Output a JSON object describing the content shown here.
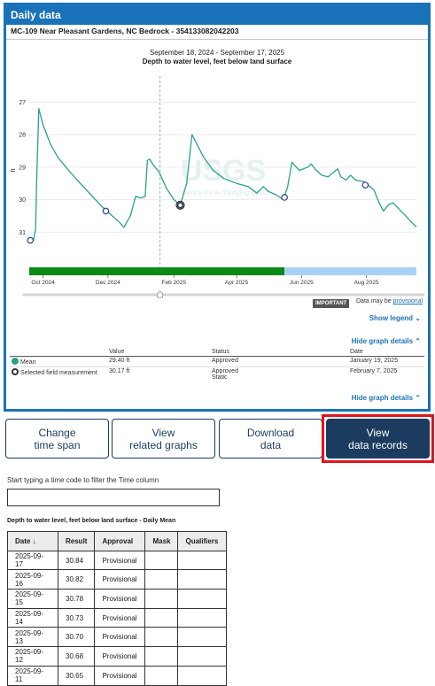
{
  "panel": {
    "title": "Daily data",
    "site_title": "MC-109 Near Pleasant Gardens, NC Bedrock - 354133082042203"
  },
  "graph": {
    "date_range": "September 18, 2024 - September 17, 2025",
    "title": "Depth to water level, feet below land surface",
    "watermark": "USGS",
    "watermark_tagline": "science for a changing world",
    "important_badge": "IMPORTANT",
    "provisional_note": "Data may be",
    "provisional_link": "provisional",
    "show_legend": "Show legend",
    "hide_details": "Hide graph details"
  },
  "chart_data": {
    "type": "line",
    "title": "Depth to water level, feet below land surface",
    "ylabel": "ft",
    "y_inverted": true,
    "ylim": [
      32,
      26.2
    ],
    "yticks": [
      27,
      28,
      29,
      30,
      31
    ],
    "xlim": [
      "2024-09-18",
      "2025-09-17"
    ],
    "xticks": [
      "Oct 2024",
      "Dec 2024",
      "Feb 2025",
      "Apr 2025",
      "Jun 2025",
      "Aug 2025"
    ],
    "xtick_dates": [
      "2024-10-01",
      "2024-12-01",
      "2025-02-01",
      "2025-04-01",
      "2025-06-01",
      "2025-08-01"
    ],
    "cursor_date": "2025-01-19",
    "series": [
      {
        "type": "line",
        "color": "#2aa08a",
        "points": [
          [
            "2024-09-18",
            31.2
          ],
          [
            "2024-09-22",
            31.25
          ],
          [
            "2024-09-24",
            30.9
          ],
          [
            "2024-09-25",
            29.4
          ],
          [
            "2024-09-27",
            27.2
          ],
          [
            "2024-10-01",
            27.7
          ],
          [
            "2024-10-08",
            28.3
          ],
          [
            "2024-10-15",
            28.7
          ],
          [
            "2024-10-25",
            29.1
          ],
          [
            "2024-11-05",
            29.5
          ],
          [
            "2024-11-15",
            29.85
          ],
          [
            "2024-11-25",
            30.2
          ],
          [
            "2024-12-05",
            30.5
          ],
          [
            "2024-12-12",
            30.7
          ],
          [
            "2024-12-16",
            30.85
          ],
          [
            "2024-12-22",
            30.5
          ],
          [
            "2024-12-27",
            29.9
          ],
          [
            "2025-01-01",
            29.95
          ],
          [
            "2025-01-05",
            29.9
          ],
          [
            "2025-01-07",
            28.8
          ],
          [
            "2025-01-09",
            28.75
          ],
          [
            "2025-01-13",
            28.95
          ],
          [
            "2025-01-18",
            29.15
          ],
          [
            "2025-01-25",
            29.65
          ],
          [
            "2025-02-01",
            30.0
          ],
          [
            "2025-02-07",
            30.17
          ],
          [
            "2025-02-13",
            29.5
          ],
          [
            "2025-02-18",
            28.0
          ],
          [
            "2025-02-22",
            28.25
          ],
          [
            "2025-03-01",
            28.7
          ],
          [
            "2025-03-10",
            29.1
          ],
          [
            "2025-03-20",
            29.35
          ],
          [
            "2025-04-01",
            29.5
          ],
          [
            "2025-04-12",
            29.6
          ],
          [
            "2025-04-20",
            29.8
          ],
          [
            "2025-04-26",
            29.6
          ],
          [
            "2025-05-01",
            29.75
          ],
          [
            "2025-05-08",
            29.85
          ],
          [
            "2025-05-15",
            30.0
          ],
          [
            "2025-05-19",
            29.6
          ],
          [
            "2025-05-23",
            28.85
          ],
          [
            "2025-05-30",
            29.1
          ],
          [
            "2025-06-07",
            29.0
          ],
          [
            "2025-06-10",
            28.9
          ],
          [
            "2025-06-15",
            29.1
          ],
          [
            "2025-06-20",
            29.25
          ],
          [
            "2025-06-26",
            29.3
          ],
          [
            "2025-07-05",
            29.05
          ],
          [
            "2025-07-08",
            29.3
          ],
          [
            "2025-07-13",
            29.4
          ],
          [
            "2025-07-17",
            29.25
          ],
          [
            "2025-07-22",
            29.4
          ],
          [
            "2025-07-30",
            29.45
          ],
          [
            "2025-08-08",
            29.7
          ],
          [
            "2025-08-13",
            30.1
          ],
          [
            "2025-08-17",
            30.35
          ],
          [
            "2025-08-22",
            30.15
          ],
          [
            "2025-08-26",
            30.1
          ],
          [
            "2025-09-01",
            30.3
          ],
          [
            "2025-09-07",
            30.5
          ],
          [
            "2025-09-12",
            30.68
          ],
          [
            "2025-09-17",
            30.84
          ]
        ]
      }
    ],
    "field_measurements": [
      [
        "2024-09-19",
        31.25
      ],
      [
        "2024-11-29",
        30.35
      ],
      [
        "2025-02-07",
        30.17
      ],
      [
        "2025-05-16",
        29.93
      ],
      [
        "2025-07-31",
        29.55
      ]
    ],
    "selected_field_measurement": [
      "2025-02-07",
      30.17
    ],
    "approval_bar": [
      {
        "status": "Approved",
        "from": "2024-09-18",
        "to": "2025-05-16",
        "color": "#0c8a16"
      },
      {
        "status": "Provisional",
        "from": "2025-05-16",
        "to": "2025-09-17",
        "color": "#a9d1f5"
      }
    ]
  },
  "details": {
    "headers": [
      "",
      "Value",
      "Status",
      "Date"
    ],
    "rows": [
      {
        "label": "Mean",
        "value": "29.40 ft",
        "status": "Approved",
        "status2": "",
        "date": "January 19, 2025"
      },
      {
        "label": "Selected field measurement",
        "value": "30.17 ft",
        "status": "Approved",
        "status2": "Static",
        "date": "February 7, 2025"
      }
    ]
  },
  "buttons": [
    {
      "label_line1": "Change",
      "label_line2": "time span"
    },
    {
      "label_line1": "View",
      "label_line2": "related graphs"
    },
    {
      "label_line1": "Download",
      "label_line2": "data"
    },
    {
      "label_line1": "View",
      "label_line2": "data records"
    }
  ],
  "filter": {
    "label": "Start typing a time code to filter the Time column",
    "value": ""
  },
  "table": {
    "caption": "Depth to water level, feet below land surface - Daily Mean",
    "headers": {
      "date": "Date",
      "result": "Result",
      "approval": "Approval",
      "mask": "Mask",
      "qualifiers": "Qualifiers"
    },
    "sort_icon": "↓",
    "rows": [
      {
        "date": "2025-09-17",
        "result": "30.84",
        "approval": "Provisional",
        "mask": "",
        "qualifiers": ""
      },
      {
        "date": "2025-09-16",
        "result": "30.82",
        "approval": "Provisional",
        "mask": "",
        "qualifiers": ""
      },
      {
        "date": "2025-09-15",
        "result": "30.78",
        "approval": "Provisional",
        "mask": "",
        "qualifiers": ""
      },
      {
        "date": "2025-09-14",
        "result": "30.73",
        "approval": "Provisional",
        "mask": "",
        "qualifiers": ""
      },
      {
        "date": "2025-09-13",
        "result": "30.70",
        "approval": "Provisional",
        "mask": "",
        "qualifiers": ""
      },
      {
        "date": "2025-09-12",
        "result": "30.68",
        "approval": "Provisional",
        "mask": "",
        "qualifiers": ""
      },
      {
        "date": "2025-09-11",
        "result": "30.65",
        "approval": "Provisional",
        "mask": "",
        "qualifiers": ""
      }
    ]
  }
}
